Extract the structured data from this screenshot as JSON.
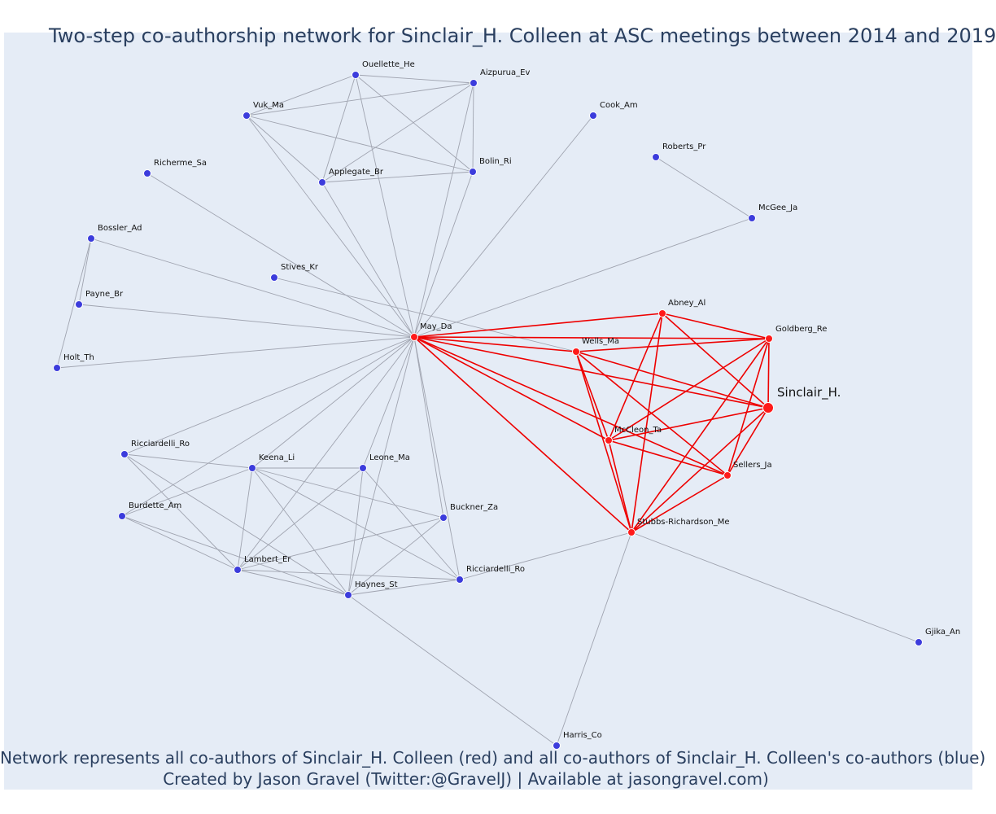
{
  "title": "Two-step co-authorship network for Sinclair_H. Colleen at ASC meetings between 2014 and 2019",
  "caption_line1": "Network represents all co-authors of Sinclair_H. Colleen (red) and all co-authors of Sinclair_H. Colleen's co-authors (blue)",
  "caption_line2": "Created by Jason Gravel (Twitter:@GravelJ) | Available at jasongravel.com)",
  "colors": {
    "background": "#e5ecf6",
    "red_node": "#ff1a1a",
    "blue_node": "#3c3cdc",
    "red_edge": "#ee0000",
    "gray_edge": "#a0a4b0",
    "text": "#2a3f5f"
  },
  "nodes": [
    {
      "id": "sinclair",
      "label": "Sinclair_H.",
      "group": "focal"
    },
    {
      "id": "may",
      "label": "May_Da",
      "group": "red"
    },
    {
      "id": "abney",
      "label": "Abney_Al",
      "group": "red"
    },
    {
      "id": "goldberg",
      "label": "Goldberg_Re",
      "group": "red"
    },
    {
      "id": "wells",
      "label": "Wells_Ma",
      "group": "red"
    },
    {
      "id": "mccleon",
      "label": "McCleon_Ta",
      "group": "red"
    },
    {
      "id": "sellers",
      "label": "Sellers_Ja",
      "group": "red"
    },
    {
      "id": "stubbs",
      "label": "Stubbs-Richardson_Me",
      "group": "red"
    },
    {
      "id": "ouellette",
      "label": "Ouellette_He",
      "group": "blue"
    },
    {
      "id": "aizpurua",
      "label": "Aizpurua_Ev",
      "group": "blue"
    },
    {
      "id": "vuk",
      "label": "Vuk_Ma",
      "group": "blue"
    },
    {
      "id": "cook",
      "label": "Cook_Am",
      "group": "blue"
    },
    {
      "id": "roberts",
      "label": "Roberts_Pr",
      "group": "blue"
    },
    {
      "id": "richerme",
      "label": "Richerme_Sa",
      "group": "blue"
    },
    {
      "id": "applegate",
      "label": "Applegate_Br",
      "group": "blue"
    },
    {
      "id": "bolin",
      "label": "Bolin_Ri",
      "group": "blue"
    },
    {
      "id": "mcgee",
      "label": "McGee_Ja",
      "group": "blue"
    },
    {
      "id": "bossler",
      "label": "Bossler_Ad",
      "group": "blue"
    },
    {
      "id": "stives",
      "label": "Stives_Kr",
      "group": "blue"
    },
    {
      "id": "payne",
      "label": "Payne_Br",
      "group": "blue"
    },
    {
      "id": "holt",
      "label": "Holt_Th",
      "group": "blue"
    },
    {
      "id": "ricciardelli1",
      "label": "Ricciardelli_Ro",
      "group": "blue"
    },
    {
      "id": "keena",
      "label": "Keena_Li",
      "group": "blue"
    },
    {
      "id": "leone",
      "label": "Leone_Ma",
      "group": "blue"
    },
    {
      "id": "burdette",
      "label": "Burdette_Am",
      "group": "blue"
    },
    {
      "id": "buckner",
      "label": "Buckner_Za",
      "group": "blue"
    },
    {
      "id": "lambert",
      "label": "Lambert_Er",
      "group": "blue"
    },
    {
      "id": "ricciardelli2",
      "label": "Ricciardelli_Ro",
      "group": "blue"
    },
    {
      "id": "haynes",
      "label": "Haynes_St",
      "group": "blue"
    },
    {
      "id": "gjika",
      "label": "Gjika_An",
      "group": "blue"
    },
    {
      "id": "harris",
      "label": "Harris_Co",
      "group": "blue"
    }
  ],
  "edges": [
    [
      "may",
      "abney"
    ],
    [
      "may",
      "goldberg"
    ],
    [
      "may",
      "wells"
    ],
    [
      "may",
      "sinclair"
    ],
    [
      "may",
      "mccleon"
    ],
    [
      "may",
      "sellers"
    ],
    [
      "may",
      "stubbs"
    ],
    [
      "abney",
      "goldberg"
    ],
    [
      "abney",
      "sinclair"
    ],
    [
      "abney",
      "mccleon"
    ],
    [
      "abney",
      "stubbs"
    ],
    [
      "wells",
      "goldberg"
    ],
    [
      "wells",
      "sinclair"
    ],
    [
      "wells",
      "mccleon"
    ],
    [
      "wells",
      "sellers"
    ],
    [
      "wells",
      "stubbs"
    ],
    [
      "goldberg",
      "sinclair"
    ],
    [
      "goldberg",
      "mccleon"
    ],
    [
      "goldberg",
      "sellers"
    ],
    [
      "goldberg",
      "stubbs"
    ],
    [
      "sinclair",
      "mccleon"
    ],
    [
      "sinclair",
      "sellers"
    ],
    [
      "sinclair",
      "stubbs"
    ],
    [
      "mccleon",
      "sellers"
    ],
    [
      "mccleon",
      "stubbs"
    ],
    [
      "sellers",
      "stubbs"
    ],
    [
      "may",
      "ouellette"
    ],
    [
      "may",
      "aizpurua"
    ],
    [
      "may",
      "vuk"
    ],
    [
      "may",
      "applegate"
    ],
    [
      "may",
      "bolin"
    ],
    [
      "may",
      "richerme"
    ],
    [
      "may",
      "cook"
    ],
    [
      "may",
      "mcgee"
    ],
    [
      "may",
      "bossler"
    ],
    [
      "may",
      "payne"
    ],
    [
      "may",
      "holt"
    ],
    [
      "stives",
      "wells"
    ],
    [
      "may",
      "ricciardelli1"
    ],
    [
      "may",
      "burdette"
    ],
    [
      "may",
      "keena"
    ],
    [
      "may",
      "leone"
    ],
    [
      "may",
      "lambert"
    ],
    [
      "may",
      "haynes"
    ],
    [
      "may",
      "buckner"
    ],
    [
      "may",
      "ricciardelli2"
    ],
    [
      "ouellette",
      "aizpurua"
    ],
    [
      "ouellette",
      "vuk"
    ],
    [
      "ouellette",
      "applegate"
    ],
    [
      "ouellette",
      "bolin"
    ],
    [
      "aizpurua",
      "vuk"
    ],
    [
      "aizpurua",
      "applegate"
    ],
    [
      "aizpurua",
      "bolin"
    ],
    [
      "vuk",
      "applegate"
    ],
    [
      "vuk",
      "bolin"
    ],
    [
      "applegate",
      "bolin"
    ],
    [
      "roberts",
      "mcgee"
    ],
    [
      "bossler",
      "payne"
    ],
    [
      "bossler",
      "holt"
    ],
    [
      "ricciardelli1",
      "keena"
    ],
    [
      "ricciardelli1",
      "lambert"
    ],
    [
      "ricciardelli1",
      "haynes"
    ],
    [
      "keena",
      "leone"
    ],
    [
      "keena",
      "burdette"
    ],
    [
      "keena",
      "buckner"
    ],
    [
      "keena",
      "lambert"
    ],
    [
      "keena",
      "haynes"
    ],
    [
      "keena",
      "ricciardelli2"
    ],
    [
      "leone",
      "lambert"
    ],
    [
      "leone",
      "haynes"
    ],
    [
      "leone",
      "ricciardelli2"
    ],
    [
      "burdette",
      "lambert"
    ],
    [
      "burdette",
      "haynes"
    ],
    [
      "buckner",
      "lambert"
    ],
    [
      "buckner",
      "haynes"
    ],
    [
      "lambert",
      "haynes"
    ],
    [
      "lambert",
      "ricciardelli2"
    ],
    [
      "haynes",
      "ricciardelli2"
    ],
    [
      "haynes",
      "harris"
    ],
    [
      "stubbs",
      "ricciardelli2"
    ],
    [
      "stubbs",
      "gjika"
    ],
    [
      "stubbs",
      "harris"
    ]
  ]
}
